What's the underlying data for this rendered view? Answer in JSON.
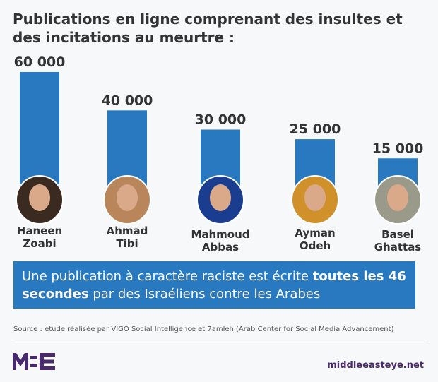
{
  "title": "Publications en ligne comprenant des insultes et des incitations au meurtre :",
  "chart_data": {
    "type": "bar",
    "title": "Publications en ligne comprenant des insultes et des incitations au meurtre :",
    "categories": [
      "Haneen Zoabi",
      "Ahmad Tibi",
      "Mahmoud Abbas",
      "Ayman Odeh",
      "Basel Ghattas"
    ],
    "name_lines": [
      [
        "Haneen",
        "Zoabi"
      ],
      [
        "Ahmad",
        "Tibi"
      ],
      [
        "Mahmoud",
        "Abbas"
      ],
      [
        "Ayman",
        "Odeh"
      ],
      [
        "Basel",
        "Ghattas"
      ]
    ],
    "values": [
      60000,
      40000,
      30000,
      25000,
      15000
    ],
    "value_labels": [
      "60 000",
      "40 000",
      "30 000",
      "25 000",
      "15 000"
    ],
    "bar_color": "#2979c0",
    "photo_colors": [
      "#3a2a20",
      "#b8865a",
      "#1a3d8f",
      "#d0902a",
      "#9a9a8a"
    ],
    "xlabel": "",
    "ylabel": "",
    "ylim": [
      0,
      60000
    ]
  },
  "callout": {
    "part1": "Une publication à caractère raciste est écrite ",
    "bold": "toutes les 46 secondes",
    "part2": " par des Israéliens contre les Arabes"
  },
  "source": "Source : étude réalisée par VIGO Social Intelligence et 7amleh (Arab Center for Social Media Advancement)",
  "logo": "MEE",
  "site": "middleeasteye.net"
}
